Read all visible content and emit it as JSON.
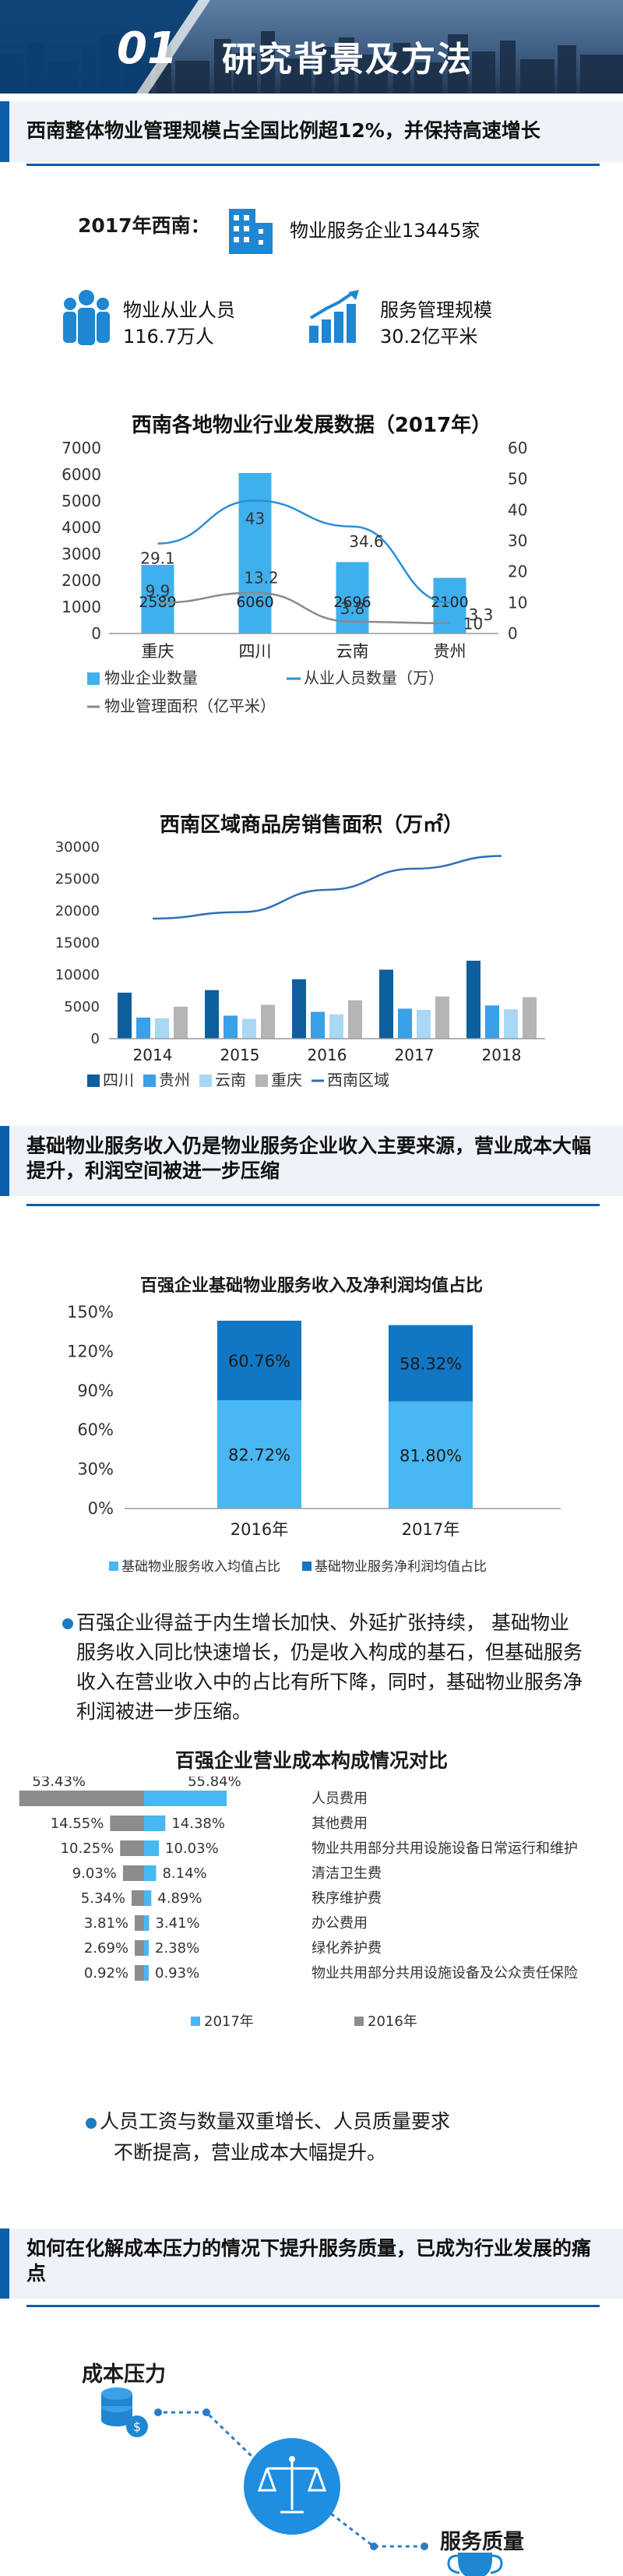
{
  "hero": {
    "number": "01",
    "title": "研究背景及方法"
  },
  "section1": {
    "title": "西南整体物业管理规模占全国比例超12%，并保持高速增长",
    "region_label": "2017年西南：",
    "enterprises_text": "物业服务企业13445家",
    "employees_title": "物业从业人员",
    "employees_value": "116.7万人",
    "scale_title": "服务管理规模",
    "scale_value": "30.2亿平米"
  },
  "chart1": {
    "title": "西南各地物业行业发展数据（2017年）",
    "left_ticks": [
      "0",
      "1000",
      "2000",
      "3000",
      "4000",
      "5000",
      "6000",
      "7000"
    ],
    "right_ticks": [
      "0",
      "10",
      "20",
      "30",
      "40",
      "50",
      "60"
    ],
    "legend": {
      "bar": "物业企业数量",
      "line1": "从业人员数量（万）",
      "line2": "物业管理面积（亿平米）"
    }
  },
  "chart2": {
    "title": "西南区域商品房销售面积（万㎡）",
    "y_ticks": [
      "0",
      "5000",
      "10000",
      "15000",
      "20000",
      "25000",
      "30000"
    ]
  },
  "section2": {
    "title": "基础物业服务收入仍是物业服务企业收入主要来源，营业成本大幅提升，利润空间被进一步压缩"
  },
  "chart3": {
    "title": "百强企业基础物业服务收入及净利润均值占比",
    "y_ticks": [
      "0%",
      "30%",
      "60%",
      "90%",
      "120%",
      "150%"
    ],
    "legend": {
      "bottom": "基础物业服务收入均值占比",
      "top": "基础物业服务净利润均值占比"
    }
  },
  "para1": {
    "text": "百强企业得益于内生增长加快、外延扩张持续， 基础物业服务收入同比快速增长，仍是收入构成的基石，但基础服务收入在营业收入中的占比有所下降，同时，基础物业服务净利润被进一步压缩。"
  },
  "chart4": {
    "title": "百强企业营业成本构成情况对比",
    "legend_2017": "2017年",
    "legend_2016": "2016年"
  },
  "para2": {
    "line1": "人员工资与数量双重增长、人员质量要求",
    "line2": "不断提高，营业成本大幅提升。"
  },
  "section3": {
    "title": "如何在化解成本压力的情况下提升服务质量，已成为行业发展的痛点",
    "cost_pressure": "成本压力",
    "service_quality": "服务质量"
  },
  "chart_data": [
    {
      "type": "bar",
      "title": "西南各地物业行业发展数据（2017年）",
      "categories": [
        "重庆",
        "四川",
        "云南",
        "贵州"
      ],
      "series": [
        {
          "name": "物业企业数量",
          "type": "bar",
          "axis": "left",
          "values": [
            2589,
            6060,
            2696,
            2100
          ],
          "color": "#3fb0ee"
        },
        {
          "name": "从业人员数量（万）",
          "type": "line",
          "axis": "right",
          "values": [
            29.1,
            43,
            34.6,
            10
          ],
          "color": "#2a8fd6"
        },
        {
          "name": "物业管理面积（亿平米）",
          "type": "line",
          "axis": "right",
          "values": [
            9.9,
            13.2,
            3.8,
            3.3
          ],
          "color": "#8a8a8a"
        }
      ],
      "line_labels": {
        "从业人员数量（万）": [
          "29.1",
          "43",
          "34.6",
          "10"
        ],
        "物业管理面积（亿平米）": [
          "9.9",
          "13.2",
          "3.8",
          "3.3"
        ]
      },
      "bar_labels": [
        "2589",
        "6060",
        "2696",
        "2100"
      ],
      "ylim_left": [
        0,
        7000
      ],
      "ylim_right": [
        0,
        60
      ]
    },
    {
      "type": "bar",
      "title": "西南区域商品房销售面积（万㎡）",
      "categories": [
        "2014",
        "2015",
        "2016",
        "2017",
        "2018"
      ],
      "series": [
        {
          "name": "四川",
          "type": "bar",
          "values": [
            7200,
            7600,
            9300,
            10800,
            12200
          ],
          "color": "#0d5f9e"
        },
        {
          "name": "贵州",
          "type": "bar",
          "values": [
            3300,
            3600,
            4200,
            4700,
            5200
          ],
          "color": "#3aa0e8"
        },
        {
          "name": "云南",
          "type": "bar",
          "values": [
            3200,
            3100,
            3800,
            4500,
            4600
          ],
          "color": "#a9d8f5"
        },
        {
          "name": "重庆",
          "type": "bar",
          "values": [
            5000,
            5300,
            6000,
            6600,
            6500
          ],
          "color": "#b5b5b5"
        },
        {
          "name": "西南区域",
          "type": "line",
          "values": [
            18800,
            19800,
            23300,
            26600,
            28600
          ],
          "color": "#2e6fb5"
        }
      ],
      "ylim": [
        0,
        30000
      ]
    },
    {
      "type": "bar",
      "title": "百强企业基础物业服务收入及净利润均值占比",
      "categories": [
        "2016年",
        "2017年"
      ],
      "stacked": true,
      "series": [
        {
          "name": "基础物业服务收入均值占比",
          "values": [
            82.72,
            81.8
          ],
          "labels": [
            "82.72%",
            "81.80%"
          ],
          "color": "#49b7f2"
        },
        {
          "name": "基础物业服务净利润均值占比",
          "values": [
            60.76,
            58.32
          ],
          "labels": [
            "60.76%",
            "58.32%"
          ],
          "color": "#1177c4"
        }
      ],
      "ylim": [
        0,
        150
      ]
    },
    {
      "type": "bar",
      "title": "百强企业营业成本构成情况对比",
      "orientation": "horizontal",
      "categories": [
        "人员费用",
        "其他费用",
        "物业共用部分共用设施设备日常运行和维护",
        "清洁卫生费",
        "秩序维护费",
        "办公费用",
        "绿化养护费",
        "物业共用部分共用设施设备及公众责任保险"
      ],
      "series": [
        {
          "name": "2017年",
          "values": [
            55.84,
            14.38,
            10.03,
            8.14,
            4.89,
            3.41,
            2.38,
            0.93
          ],
          "labels": [
            "55.84%",
            "14.38%",
            "10.03%",
            "8.14%",
            "4.89%",
            "3.41%",
            "2.38%",
            "0.93%"
          ],
          "color": "#49b7f2"
        },
        {
          "name": "2016年",
          "values": [
            53.43,
            14.55,
            10.25,
            9.03,
            5.34,
            3.81,
            2.69,
            0.92
          ],
          "labels": [
            "53.43%",
            "14.55%",
            "10.25%",
            "9.03%",
            "5.34%",
            "3.81%",
            "2.69%",
            "0.92%"
          ],
          "color": "#8c8c8c"
        }
      ]
    }
  ]
}
